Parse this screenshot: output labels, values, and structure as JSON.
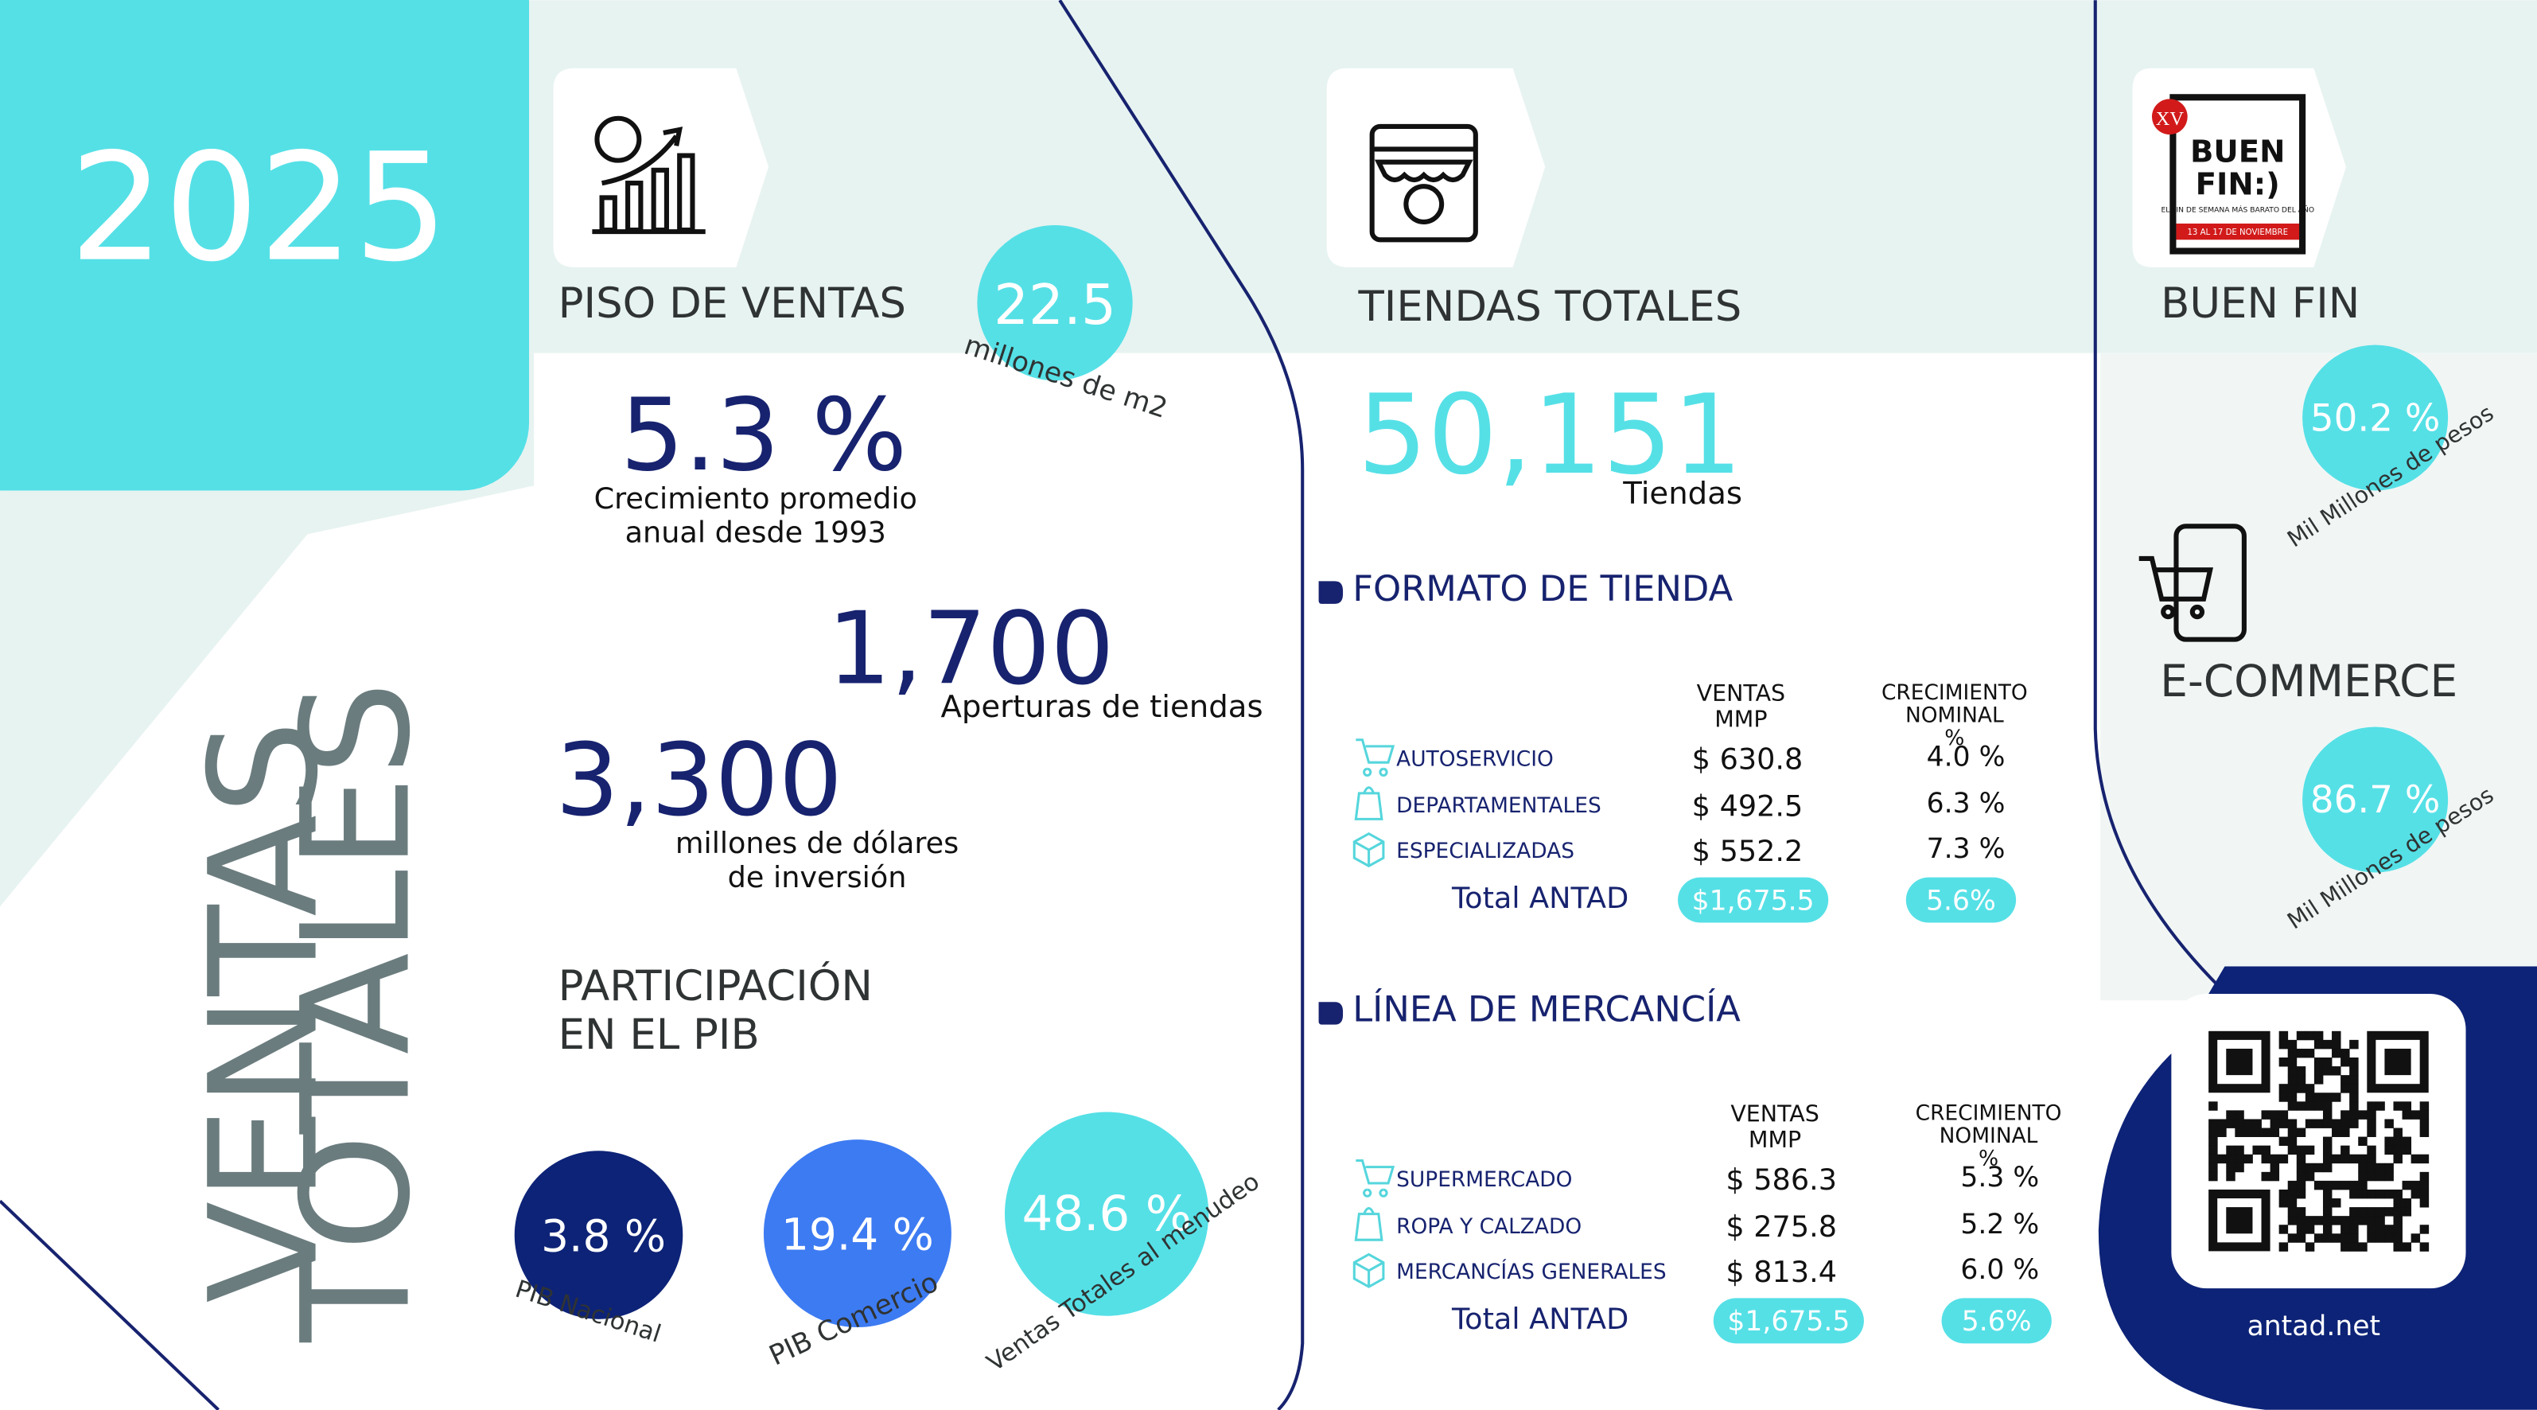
{
  "year": "2025",
  "vertical_title": [
    "VENTAS",
    "TOTALES"
  ],
  "piso": {
    "title": "PISO DE VENTAS",
    "value": "22.5",
    "unit": "millones de m2"
  },
  "growth": {
    "value": "5.3 %",
    "label_lines": [
      "Crecimiento promedio",
      "anual desde 1993"
    ]
  },
  "openings": {
    "value": "1,700",
    "label": "Aperturas de tiendas"
  },
  "investment": {
    "value": "3,300",
    "label_lines": [
      "millones de dólares",
      "de inversión"
    ]
  },
  "pib": {
    "title_lines": [
      "PARTICIPACIÓN",
      "EN EL PIB"
    ],
    "items": [
      {
        "value": "3.8 %",
        "label": "PIB Nacional"
      },
      {
        "value": "19.4 %",
        "label": "PIB Comercio"
      },
      {
        "value": "48.6 %",
        "label": "Ventas Totales al menudeo"
      }
    ]
  },
  "tiendas": {
    "title": "TIENDAS TOTALES",
    "value": "50,151",
    "unit": "Tiendas"
  },
  "formato": {
    "title": "FORMATO DE TIENDA",
    "headers": [
      [
        "VENTAS",
        "MMP"
      ],
      [
        "CRECIMIENTO",
        "NOMINAL",
        "%"
      ]
    ],
    "rows": [
      [
        "AUTOSERVICIO",
        "$ 630.8",
        "4.0 %"
      ],
      [
        "DEPARTAMENTALES",
        "$ 492.5",
        "6.3 %"
      ],
      [
        "ESPECIALIZADAS",
        "$ 552.2",
        "7.3 %"
      ]
    ],
    "total": [
      "Total ANTAD",
      "$1,675.5",
      "5.6%"
    ]
  },
  "linea": {
    "title": "LÍNEA DE MERCANCÍA",
    "headers": [
      [
        "VENTAS",
        "MMP"
      ],
      [
        "CRECIMIENTO",
        "NOMINAL",
        "%"
      ]
    ],
    "rows": [
      [
        "SUPERMERCADO",
        "$ 586.3",
        "5.3 %"
      ],
      [
        "ROPA Y CALZADO",
        "$ 275.8",
        "5.2 %"
      ],
      [
        "MERCANCÍAS GENERALES",
        "$ 813.4",
        "6.0 %"
      ]
    ],
    "total": [
      "Total ANTAD",
      "$1,675.5",
      "5.6%"
    ]
  },
  "buen_fin": {
    "title": "BUEN FIN",
    "value": "50.2 %",
    "unit": "Mil Millones de pesos",
    "logo": {
      "badge": "XV",
      "lines": [
        "BUEN",
        "FIN:)"
      ],
      "tagline": "EL FIN DE SEMANA MÁS BARATO DEL AÑO",
      "dates": "13 AL 17 DE NOVIEMBRE"
    }
  },
  "ecommerce": {
    "title": "E-COMMERCE",
    "value": "86.7 %",
    "unit": "Mil Millones de pesos"
  },
  "footer": {
    "url": "antad.net"
  }
}
